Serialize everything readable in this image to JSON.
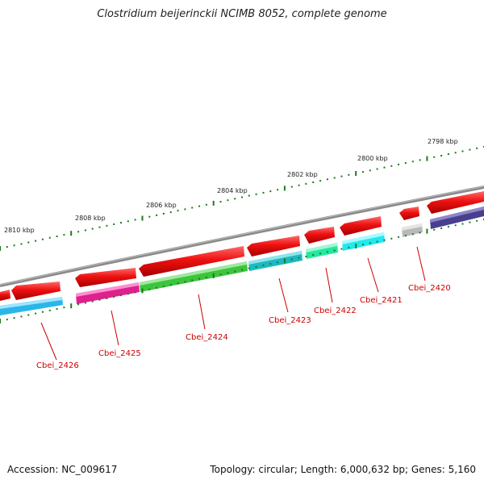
{
  "title": "Clostridium beijerinckii NCIMB 8052, complete genome",
  "footer": {
    "accession": "Accession: NC_009617",
    "summary": "Topology: circular; Length: 6,000,632 bp; Genes: 5,160"
  },
  "scale_labels": [
    "2810 kbp",
    "2808 kbp",
    "2806 kbp",
    "2804 kbp",
    "2802 kbp",
    "2800 kbp",
    "2798 kbp"
  ],
  "genes": [
    {
      "name": "Cbei_2426",
      "cds_color": "#29b6e8"
    },
    {
      "name": "Cbei_2425",
      "cds_color": "#e0208f"
    },
    {
      "name": "Cbei_2424",
      "cds_color": "#3ec43e"
    },
    {
      "name": "Cbei_2423",
      "cds_color": "#1fb8c2"
    },
    {
      "name": "Cbei_2422",
      "cds_color": "#22e8a0"
    },
    {
      "name": "Cbei_2421",
      "cds_color": "#22e8f0"
    },
    {
      "name": "Cbei_2420",
      "cds_color": "#b8b8b8"
    }
  ],
  "colors": {
    "gene_strand": "#e01010",
    "backbone": "#808080",
    "tick": "#1a7a1a",
    "label": "#cc0000",
    "extra_cds": "#4a3f8f"
  }
}
